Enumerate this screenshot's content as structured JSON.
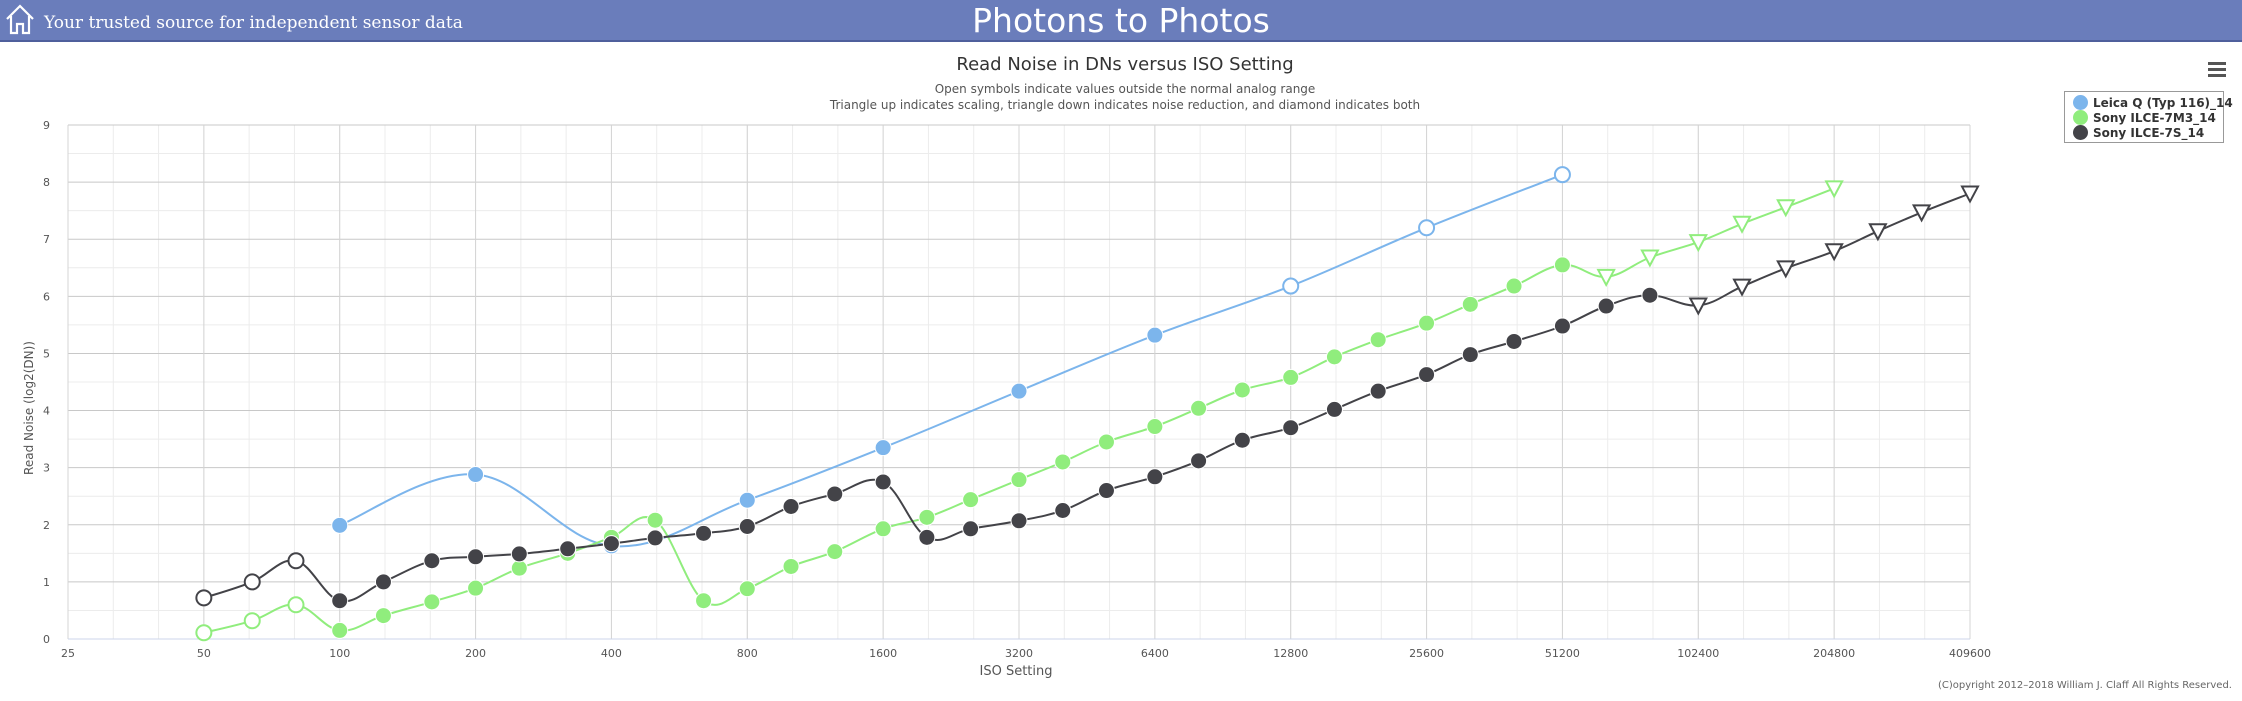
{
  "banner": {
    "tagline": "Your trusted source for independent sensor data",
    "site_title": "Photons to Photos",
    "home_icon": "home-icon",
    "background_color": "#6a7dbb"
  },
  "menu": {
    "icon": "hamburger-menu-icon"
  },
  "copyright": "(C)opyright 2012–2018 William J. Claff All Rights Reserved.",
  "chart_data": {
    "type": "line",
    "title": "Read Noise in DNs versus ISO Setting",
    "subtitle_lines": [
      "Open symbols indicate values outside the normal analog range",
      "Triangle up indicates scaling, triangle down indicates noise reduction, and diamond indicates both"
    ],
    "xlabel": "ISO Setting",
    "ylabel": "Read Noise (log2(DN))",
    "x_scale": "log2",
    "x_ticks": [
      "25",
      "50",
      "100",
      "200",
      "400",
      "800",
      "1600",
      "3200",
      "6400",
      "12800",
      "25600",
      "51200",
      "102400",
      "204800",
      "409600"
    ],
    "xlim": [
      25,
      409600
    ],
    "y_ticks": [
      0,
      1,
      2,
      3,
      4,
      5,
      6,
      7,
      8,
      9
    ],
    "ylim": [
      0,
      9
    ],
    "grid": true,
    "legend_position": "right",
    "series": [
      {
        "name": "Leica Q (Typ 116)_14",
        "color": "#7cb5ec",
        "points": [
          {
            "iso": 100,
            "value": 1.99,
            "marker": "filled"
          },
          {
            "iso": 200,
            "value": 2.88,
            "marker": "filled"
          },
          {
            "iso": 400,
            "value": 1.63,
            "marker": "filled"
          },
          {
            "iso": 800,
            "value": 2.43,
            "marker": "filled"
          },
          {
            "iso": 1600,
            "value": 3.35,
            "marker": "filled"
          },
          {
            "iso": 3200,
            "value": 4.34,
            "marker": "filled"
          },
          {
            "iso": 6400,
            "value": 5.32,
            "marker": "filled"
          },
          {
            "iso": 12800,
            "value": 6.18,
            "marker": "open"
          },
          {
            "iso": 25600,
            "value": 7.2,
            "marker": "open"
          },
          {
            "iso": 51200,
            "value": 8.13,
            "marker": "open"
          }
        ]
      },
      {
        "name": "Sony ILCE-7M3_14",
        "color": "#90ed7d",
        "points": [
          {
            "iso": 50,
            "value": 0.11,
            "marker": "open"
          },
          {
            "iso": 64,
            "value": 0.32,
            "marker": "open"
          },
          {
            "iso": 80,
            "value": 0.6,
            "marker": "open"
          },
          {
            "iso": 100,
            "value": 0.15,
            "marker": "filled"
          },
          {
            "iso": 125,
            "value": 0.41,
            "marker": "filled"
          },
          {
            "iso": 160,
            "value": 0.65,
            "marker": "filled"
          },
          {
            "iso": 200,
            "value": 0.89,
            "marker": "filled"
          },
          {
            "iso": 250,
            "value": 1.24,
            "marker": "filled"
          },
          {
            "iso": 320,
            "value": 1.5,
            "marker": "filled"
          },
          {
            "iso": 400,
            "value": 1.78,
            "marker": "filled"
          },
          {
            "iso": 500,
            "value": 2.08,
            "marker": "filled"
          },
          {
            "iso": 640,
            "value": 0.67,
            "marker": "filled"
          },
          {
            "iso": 800,
            "value": 0.88,
            "marker": "filled"
          },
          {
            "iso": 1000,
            "value": 1.27,
            "marker": "filled"
          },
          {
            "iso": 1250,
            "value": 1.53,
            "marker": "filled"
          },
          {
            "iso": 1600,
            "value": 1.93,
            "marker": "filled"
          },
          {
            "iso": 2000,
            "value": 2.13,
            "marker": "filled"
          },
          {
            "iso": 2500,
            "value": 2.44,
            "marker": "filled"
          },
          {
            "iso": 3200,
            "value": 2.79,
            "marker": "filled"
          },
          {
            "iso": 4000,
            "value": 3.1,
            "marker": "filled"
          },
          {
            "iso": 5000,
            "value": 3.45,
            "marker": "filled"
          },
          {
            "iso": 6400,
            "value": 3.72,
            "marker": "filled"
          },
          {
            "iso": 8000,
            "value": 4.04,
            "marker": "filled"
          },
          {
            "iso": 10000,
            "value": 4.36,
            "marker": "filled"
          },
          {
            "iso": 12800,
            "value": 4.58,
            "marker": "filled"
          },
          {
            "iso": 16000,
            "value": 4.94,
            "marker": "filled"
          },
          {
            "iso": 20000,
            "value": 5.24,
            "marker": "filled"
          },
          {
            "iso": 25600,
            "value": 5.53,
            "marker": "filled"
          },
          {
            "iso": 32000,
            "value": 5.86,
            "marker": "filled"
          },
          {
            "iso": 40000,
            "value": 6.18,
            "marker": "filled"
          },
          {
            "iso": 51200,
            "value": 6.55,
            "marker": "filled"
          },
          {
            "iso": 64000,
            "value": 6.34,
            "marker": "triangle-down"
          },
          {
            "iso": 80000,
            "value": 6.68,
            "marker": "triangle-down"
          },
          {
            "iso": 102400,
            "value": 6.95,
            "marker": "triangle-down"
          },
          {
            "iso": 128000,
            "value": 7.27,
            "marker": "triangle-down"
          },
          {
            "iso": 160000,
            "value": 7.56,
            "marker": "triangle-down"
          },
          {
            "iso": 204800,
            "value": 7.89,
            "marker": "triangle-down"
          }
        ]
      },
      {
        "name": "Sony ILCE-7S_14",
        "color": "#434348",
        "points": [
          {
            "iso": 50,
            "value": 0.72,
            "marker": "open"
          },
          {
            "iso": 64,
            "value": 1.0,
            "marker": "open"
          },
          {
            "iso": 80,
            "value": 1.37,
            "marker": "open"
          },
          {
            "iso": 100,
            "value": 0.67,
            "marker": "filled"
          },
          {
            "iso": 125,
            "value": 1.0,
            "marker": "filled"
          },
          {
            "iso": 160,
            "value": 1.37,
            "marker": "filled"
          },
          {
            "iso": 200,
            "value": 1.44,
            "marker": "filled"
          },
          {
            "iso": 250,
            "value": 1.49,
            "marker": "filled"
          },
          {
            "iso": 320,
            "value": 1.58,
            "marker": "filled"
          },
          {
            "iso": 400,
            "value": 1.67,
            "marker": "filled"
          },
          {
            "iso": 500,
            "value": 1.77,
            "marker": "filled"
          },
          {
            "iso": 640,
            "value": 1.85,
            "marker": "filled"
          },
          {
            "iso": 800,
            "value": 1.97,
            "marker": "filled"
          },
          {
            "iso": 1000,
            "value": 2.32,
            "marker": "filled"
          },
          {
            "iso": 1250,
            "value": 2.54,
            "marker": "filled"
          },
          {
            "iso": 1600,
            "value": 2.75,
            "marker": "filled"
          },
          {
            "iso": 2000,
            "value": 1.78,
            "marker": "filled"
          },
          {
            "iso": 2500,
            "value": 1.93,
            "marker": "filled"
          },
          {
            "iso": 3200,
            "value": 2.07,
            "marker": "filled"
          },
          {
            "iso": 4000,
            "value": 2.25,
            "marker": "filled"
          },
          {
            "iso": 5000,
            "value": 2.6,
            "marker": "filled"
          },
          {
            "iso": 6400,
            "value": 2.84,
            "marker": "filled"
          },
          {
            "iso": 8000,
            "value": 3.12,
            "marker": "filled"
          },
          {
            "iso": 10000,
            "value": 3.48,
            "marker": "filled"
          },
          {
            "iso": 12800,
            "value": 3.7,
            "marker": "filled"
          },
          {
            "iso": 16000,
            "value": 4.02,
            "marker": "filled"
          },
          {
            "iso": 20000,
            "value": 4.34,
            "marker": "filled"
          },
          {
            "iso": 25600,
            "value": 4.63,
            "marker": "filled"
          },
          {
            "iso": 32000,
            "value": 4.98,
            "marker": "filled"
          },
          {
            "iso": 40000,
            "value": 5.21,
            "marker": "filled"
          },
          {
            "iso": 51200,
            "value": 5.48,
            "marker": "filled"
          },
          {
            "iso": 64000,
            "value": 5.83,
            "marker": "filled"
          },
          {
            "iso": 80000,
            "value": 6.02,
            "marker": "filled"
          },
          {
            "iso": 102400,
            "value": 5.84,
            "marker": "triangle-down"
          },
          {
            "iso": 128000,
            "value": 6.17,
            "marker": "triangle-down"
          },
          {
            "iso": 160000,
            "value": 6.49,
            "marker": "triangle-down"
          },
          {
            "iso": 204800,
            "value": 6.79,
            "marker": "triangle-down"
          },
          {
            "iso": 256000,
            "value": 7.14,
            "marker": "triangle-down"
          },
          {
            "iso": 320000,
            "value": 7.47,
            "marker": "triangle-down"
          },
          {
            "iso": 409600,
            "value": 7.8,
            "marker": "triangle-down"
          }
        ]
      }
    ]
  }
}
